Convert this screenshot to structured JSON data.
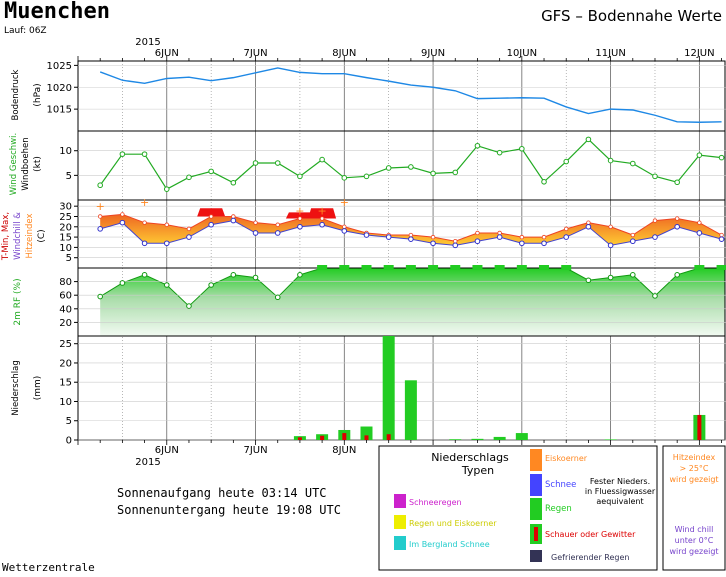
{
  "header": {
    "city": "Muenchen",
    "run": "Lauf: 06Z",
    "product": "GFS – Bodennahe Werte",
    "year": "2015"
  },
  "footer": {
    "sunrise": "Sonnenaufgang heute 03:14 UTC",
    "sunset": "Sonnenuntergang heute 19:08 UTC",
    "source": "Wetterzentrale"
  },
  "legend": {
    "title_line1": "Niederschlags",
    "title_line2": "Typen",
    "snow_rain": "Schneeregen",
    "rain_ice": "Regen und Eiskoerner",
    "mountain_snow": "Im Bergland Schnee",
    "ice_pellets": "Eiskoerner",
    "snow": "Schnee",
    "rain": "Regen",
    "showers": "Schauer oder Gewitter",
    "freezing_rain": "Gefrierender Regen",
    "solid_line1": "Fester Nieders.",
    "solid_line2": "in Fluessigwasser",
    "solid_line3": "aequivalent",
    "heat_line1": "Hitzeindex",
    "heat_line2": "> 25°C",
    "heat_line3": "wird gezeigt",
    "chill_line1": "Wind chill",
    "chill_line2": "unter 0°C",
    "chill_line3": "wird gezeigt",
    "colors": {
      "snow_rain": "#cc22cc",
      "rain_ice": "#eeee00",
      "mountain_snow": "#22cccc",
      "ice_pellets": "#ff8822",
      "snow": "#4444ff",
      "rain": "#22cc22",
      "showers_outer": "#22cc22",
      "showers_inner": "#dd0000",
      "freezing_rain": "#333355"
    }
  },
  "chart_data": [
    {
      "type": "line",
      "name": "pressure",
      "ylabel": "Bodendruck",
      "yunit": "(hPa)",
      "ylim": [
        1010,
        1026
      ],
      "yticks": [
        1015,
        1020,
        1025
      ],
      "x_days": [
        "6JUN",
        "7JUN",
        "8JUN",
        "9JUN",
        "10JUN",
        "11JUN",
        "12JUN"
      ],
      "x": [
        5.25,
        5.5,
        5.75,
        6.0,
        6.25,
        6.5,
        6.75,
        7.0,
        7.25,
        7.5,
        7.75,
        8.0,
        8.25,
        8.5,
        8.75,
        9.0,
        9.25,
        9.5,
        9.75,
        10.0,
        10.25,
        10.5,
        10.75,
        11.0,
        11.25,
        11.5,
        11.75,
        12.0,
        12.25
      ],
      "values": [
        1023.5,
        1021.6,
        1020.9,
        1022.0,
        1022.3,
        1021.5,
        1022.2,
        1023.3,
        1024.4,
        1023.4,
        1023.1,
        1023.1,
        1022.2,
        1021.4,
        1020.5,
        1020.0,
        1019.2,
        1017.4,
        1017.5,
        1017.6,
        1017.5,
        1015.5,
        1014.0,
        1015.0,
        1014.8,
        1013.6,
        1012.1,
        1012.0,
        1012.1
      ],
      "color": "#1e88e5"
    },
    {
      "type": "line",
      "name": "wind",
      "ylabel1": "Wind Geschwi.",
      "ylabel2": "Windboehen",
      "yunit": "(kt)",
      "ylim": [
        0,
        14
      ],
      "yticks": [
        5,
        10
      ],
      "x": [
        5.25,
        5.5,
        5.75,
        6.0,
        6.25,
        6.5,
        6.75,
        7.0,
        7.25,
        7.5,
        7.75,
        8.0,
        8.25,
        8.5,
        8.75,
        9.0,
        9.25,
        9.5,
        9.75,
        10.0,
        10.25,
        10.5,
        10.75,
        11.0,
        11.25,
        11.5,
        11.75,
        12.0,
        12.25
      ],
      "values": [
        3.0,
        9.3,
        9.3,
        2.2,
        4.6,
        5.8,
        3.5,
        7.5,
        7.5,
        4.8,
        8.2,
        4.5,
        4.8,
        6.5,
        6.7,
        5.4,
        5.6,
        11.0,
        9.6,
        10.4,
        3.7,
        7.8,
        12.3,
        8.0,
        7.4,
        4.8,
        3.6,
        9.1,
        8.6
      ],
      "color": "#22aa22"
    },
    {
      "type": "area",
      "name": "temperature",
      "ylabel_t": "T-Min, Max,",
      "ylabel_wc": "Windchill &",
      "ylabel_hi": "Hitzeindex",
      "yunit": "(C)",
      "ylim": [
        0,
        33
      ],
      "yticks": [
        5,
        10,
        15,
        20,
        25,
        30
      ],
      "x": [
        5.25,
        5.5,
        5.75,
        6.0,
        6.25,
        6.5,
        6.75,
        7.0,
        7.25,
        7.5,
        7.75,
        8.0,
        8.25,
        8.5,
        8.75,
        9.0,
        9.25,
        9.5,
        9.75,
        10.0,
        10.25,
        10.5,
        10.75,
        11.0,
        11.25,
        11.5,
        11.75,
        12.0,
        12.25
      ],
      "tmax": [
        25,
        26,
        22,
        21,
        19,
        25,
        25,
        22,
        21,
        24,
        24,
        20,
        17,
        16,
        16,
        15,
        13,
        17,
        17,
        15,
        15,
        19,
        22,
        20,
        16,
        23,
        24,
        22,
        16
      ],
      "tmin": [
        19,
        22,
        12,
        12,
        15,
        21,
        23,
        17,
        17,
        20,
        21,
        18,
        16,
        15,
        14,
        12,
        11,
        13,
        15,
        12,
        12,
        15,
        20,
        11,
        13,
        15,
        20,
        17,
        14
      ],
      "heat_index": [
        null,
        null,
        null,
        null,
        null,
        29,
        null,
        null,
        null,
        27,
        29,
        null,
        null,
        null,
        null,
        null,
        null,
        null,
        null,
        null,
        null,
        null,
        null,
        null,
        null,
        null,
        null,
        null,
        null
      ],
      "heat_plus": [
        {
          "x": 5.25,
          "y": 30
        },
        {
          "x": 5.75,
          "y": 32
        },
        {
          "x": 7.5,
          "y": 28
        },
        {
          "x": 7.75,
          "y": 28
        },
        {
          "x": 8.0,
          "y": 32
        }
      ]
    },
    {
      "type": "area",
      "name": "humidity",
      "ylabel": "2m RF (%)",
      "ylim": [
        0,
        100
      ],
      "yticks": [
        20,
        40,
        60,
        80
      ],
      "x": [
        5.25,
        5.5,
        5.75,
        6.0,
        6.25,
        6.5,
        6.75,
        7.0,
        7.25,
        7.5,
        7.75,
        8.0,
        8.25,
        8.5,
        8.75,
        9.0,
        9.25,
        9.5,
        9.75,
        10.0,
        10.25,
        10.5,
        10.75,
        11.0,
        11.25,
        11.5,
        11.75,
        12.0,
        12.25
      ],
      "values": [
        58,
        78,
        90,
        75,
        44,
        75,
        90,
        86,
        57,
        90,
        100,
        100,
        100,
        100,
        100,
        100,
        100,
        100,
        100,
        100,
        100,
        100,
        82,
        86,
        90,
        59,
        90,
        100,
        100
      ],
      "color": "#22bb22"
    },
    {
      "type": "bar",
      "name": "precipitation",
      "ylabel": "Niederschlag",
      "yunit": "(mm)",
      "ylim": [
        0,
        27
      ],
      "yticks": [
        0,
        5,
        10,
        15,
        20,
        25
      ],
      "x": [
        7.5,
        7.75,
        8.0,
        8.25,
        8.5,
        8.75,
        9.25,
        9.5,
        9.75,
        10.0,
        11.0,
        12.0
      ],
      "values": [
        1.0,
        1.5,
        2.6,
        3.5,
        27.0,
        15.5,
        0.2,
        0.3,
        0.8,
        1.8,
        0.15,
        6.5
      ],
      "shower": [
        0.7,
        1.1,
        1.8,
        1.2,
        1.5,
        0,
        0,
        0,
        0,
        0,
        0,
        6.5
      ]
    }
  ]
}
